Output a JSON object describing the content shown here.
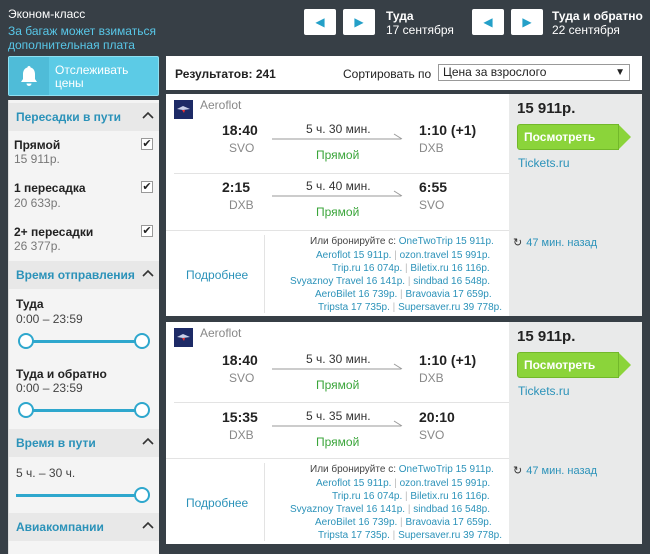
{
  "header": {
    "class_label": "Эконом-класс",
    "baggage_note": "За багаж может взиматься дополнительная плата",
    "outbound": {
      "title": "Туда",
      "date": "17 сентября"
    },
    "return": {
      "title": "Туда и обратно",
      "date": "22 сентября"
    }
  },
  "track": {
    "label": "Отслеживать цены",
    "icon": "bell-icon"
  },
  "filters": {
    "stops": {
      "title": "Пересадки в пути",
      "options": [
        {
          "label": "Прямой",
          "price": "15 911р.",
          "checked": true
        },
        {
          "label": "1 пересадка",
          "price": "20 633р.",
          "checked": true
        },
        {
          "label": "2+ пересадки",
          "price": "26 377р.",
          "checked": true
        }
      ]
    },
    "departure_time": {
      "title": "Время отправления",
      "outbound": {
        "label": "Туда",
        "range": "0:00 – 23:59"
      },
      "return": {
        "label": "Туда и обратно",
        "range": "0:00 – 23:59"
      }
    },
    "travel_time": {
      "title": "Время в пути",
      "range": "5 ч. – 30 ч."
    },
    "airlines": {
      "title": "Авиакомпании"
    }
  },
  "results": {
    "count_label": "Результатов: 241",
    "sort_label": "Сортировать по",
    "sort_value": "Цена за взрослого"
  },
  "cards": [
    {
      "airline": "Aeroflot",
      "segments": [
        {
          "dep_time": "18:40",
          "dep_ap": "SVO",
          "duration": "5 ч. 30 мин.",
          "stops": "Прямой",
          "arr_time": "1:10 (+1)",
          "arr_ap": "DXB"
        },
        {
          "dep_time": "2:15",
          "dep_ap": "DXB",
          "duration": "5 ч. 40 мин.",
          "stops": "Прямой",
          "arr_time": "6:55",
          "arr_ap": "SVO"
        }
      ],
      "details": "Подробнее",
      "book_title": "Или бронируйте с:",
      "book_first": "OneTwoTrip 15 911р.",
      "book_rows": [
        [
          "Aeroflot 15 911р.",
          "ozon.travel 15 991р."
        ],
        [
          "Trip.ru 16 074р.",
          "Biletix.ru 16 116р."
        ],
        [
          "Svyaznoy Travel 16 141р.",
          "sindbad 16 548р."
        ],
        [
          "AeroBilet 16 739р.",
          "Bravoavia 17 659р."
        ],
        [
          "Tripsta 17 735р.",
          "Supersaver.ru 39 778р."
        ]
      ],
      "price": "15 911р.",
      "view_button": "Посмотреть",
      "agency": "Tickets.ru",
      "updated": "47 мин. назад"
    },
    {
      "airline": "Aeroflot",
      "segments": [
        {
          "dep_time": "18:40",
          "dep_ap": "SVO",
          "duration": "5 ч. 30 мин.",
          "stops": "Прямой",
          "arr_time": "1:10 (+1)",
          "arr_ap": "DXB"
        },
        {
          "dep_time": "15:35",
          "dep_ap": "DXB",
          "duration": "5 ч. 35 мин.",
          "stops": "Прямой",
          "arr_time": "20:10",
          "arr_ap": "SVO"
        }
      ],
      "details": "Подробнее",
      "book_title": "Или бронируйте с:",
      "book_first": "OneTwoTrip 15 911р.",
      "book_rows": [
        [
          "Aeroflot 15 911р.",
          "ozon.travel 15 991р."
        ],
        [
          "Trip.ru 16 074р.",
          "Biletix.ru 16 116р."
        ],
        [
          "Svyaznoy Travel 16 141р.",
          "sindbad 16 548р."
        ],
        [
          "AeroBilet 16 739р.",
          "Bravoavia 17 659р."
        ],
        [
          "Tripsta 17 735р.",
          "Supersaver.ru 39 778р."
        ]
      ],
      "price": "15 911р.",
      "view_button": "Посмотреть",
      "agency": "Tickets.ru",
      "updated": "47 мин. назад"
    }
  ]
}
